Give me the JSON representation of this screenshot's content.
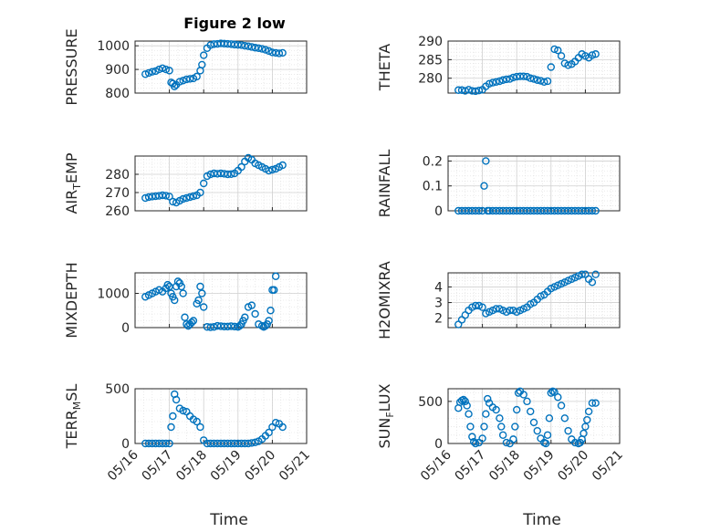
{
  "figure": {
    "title": "Figure 2 low",
    "xlabel": "Time",
    "x_ticks": [
      "05/16",
      "05/17",
      "05/18",
      "05/19",
      "05/20",
      "05/21"
    ],
    "marker_color": "#0072BD"
  },
  "chart_data": [
    {
      "type": "scatter",
      "id": "pressure",
      "ylabel": "PRESSURE",
      "ylim": [
        800,
        1020
      ],
      "yticks": [
        "800",
        "900",
        "1000"
      ],
      "ytick_values": [
        800,
        900,
        1000
      ],
      "xlim": [
        0,
        5
      ],
      "show_x_ticks": false,
      "x": [
        0.3,
        0.4,
        0.5,
        0.6,
        0.7,
        0.8,
        0.9,
        1.0,
        1.05,
        1.1,
        1.15,
        1.2,
        1.3,
        1.4,
        1.5,
        1.6,
        1.7,
        1.8,
        1.9,
        1.95,
        2.0,
        2.1,
        2.2,
        2.3,
        2.4,
        2.5,
        2.6,
        2.7,
        2.8,
        2.9,
        3.0,
        3.1,
        3.2,
        3.3,
        3.4,
        3.5,
        3.6,
        3.7,
        3.8,
        3.9,
        4.0,
        4.1,
        4.2,
        4.3
      ],
      "y": [
        880,
        885,
        890,
        893,
        900,
        905,
        900,
        895,
        845,
        840,
        828,
        835,
        848,
        853,
        858,
        860,
        862,
        870,
        895,
        920,
        960,
        990,
        1003,
        1007,
        1008,
        1010,
        1009,
        1008,
        1007,
        1005,
        1004,
        1003,
        1000,
        998,
        995,
        992,
        990,
        987,
        983,
        978,
        972,
        970,
        968,
        970
      ]
    },
    {
      "type": "scatter",
      "id": "theta",
      "ylabel": "THETA",
      "ylim": [
        276,
        290
      ],
      "yticks": [
        "280",
        "285",
        "290"
      ],
      "ytick_values": [
        280,
        285,
        290
      ],
      "xlim": [
        0,
        5
      ],
      "show_x_ticks": false,
      "x": [
        0.3,
        0.4,
        0.5,
        0.6,
        0.7,
        0.8,
        0.9,
        1.0,
        1.1,
        1.2,
        1.3,
        1.4,
        1.5,
        1.6,
        1.7,
        1.8,
        1.9,
        2.0,
        2.1,
        2.2,
        2.3,
        2.4,
        2.5,
        2.6,
        2.7,
        2.8,
        2.9,
        3.0,
        3.1,
        3.2,
        3.3,
        3.4,
        3.5,
        3.6,
        3.7,
        3.8,
        3.9,
        4.0,
        4.1,
        4.2,
        4.3
      ],
      "y": [
        276.8,
        276.8,
        276.6,
        276.9,
        276.6,
        276.5,
        276.7,
        276.9,
        277.8,
        278.5,
        278.8,
        279.0,
        279.2,
        279.5,
        279.7,
        279.8,
        280.2,
        280.4,
        280.5,
        280.5,
        280.4,
        280.0,
        279.8,
        279.5,
        279.3,
        279.0,
        279.2,
        283.0,
        287.8,
        287.5,
        286.0,
        284.0,
        283.5,
        283.8,
        284.5,
        285.5,
        286.5,
        286.0,
        285.5,
        286.2,
        286.5
      ]
    },
    {
      "type": "scatter",
      "id": "air_temp",
      "ylabel": "AIR_TEMP",
      "ylim": [
        260,
        290
      ],
      "yticks": [
        "260",
        "270",
        "280"
      ],
      "ytick_values": [
        260,
        270,
        280
      ],
      "xlim": [
        0,
        5
      ],
      "show_x_ticks": false,
      "x": [
        0.3,
        0.4,
        0.5,
        0.6,
        0.7,
        0.8,
        0.9,
        1.0,
        1.1,
        1.2,
        1.3,
        1.4,
        1.5,
        1.6,
        1.7,
        1.8,
        1.9,
        2.0,
        2.1,
        2.2,
        2.3,
        2.4,
        2.5,
        2.6,
        2.7,
        2.8,
        2.9,
        3.0,
        3.1,
        3.2,
        3.3,
        3.4,
        3.5,
        3.6,
        3.7,
        3.8,
        3.9,
        4.0,
        4.1,
        4.2,
        4.3
      ],
      "y": [
        267,
        267.5,
        267.8,
        268,
        268.2,
        268.5,
        268.3,
        267.8,
        265,
        264.5,
        265.5,
        266.5,
        267,
        267.5,
        268,
        268.5,
        270,
        275,
        279,
        280,
        280.5,
        280.3,
        280.5,
        280.3,
        280,
        280.1,
        280.5,
        282,
        284,
        287,
        289,
        288,
        286,
        285,
        284,
        283,
        282,
        282.5,
        283,
        284,
        285
      ]
    },
    {
      "type": "scatter",
      "id": "rainfall",
      "ylabel": "RAINFALL",
      "ylim": [
        0,
        0.22
      ],
      "yticks": [
        "0",
        "0.1",
        "0.2"
      ],
      "ytick_values": [
        0,
        0.1,
        0.2
      ],
      "xlim": [
        0,
        5
      ],
      "show_x_ticks": false,
      "x": [
        0.3,
        0.4,
        0.5,
        0.6,
        0.7,
        0.8,
        0.9,
        1.0,
        1.05,
        1.1,
        1.15,
        1.2,
        1.3,
        1.4,
        1.5,
        1.6,
        1.7,
        1.8,
        1.9,
        2.0,
        2.1,
        2.2,
        2.3,
        2.4,
        2.5,
        2.6,
        2.7,
        2.8,
        2.9,
        3.0,
        3.1,
        3.2,
        3.3,
        3.4,
        3.5,
        3.6,
        3.7,
        3.8,
        3.9,
        4.0,
        4.1,
        4.2,
        4.3
      ],
      "y": [
        0,
        0,
        0,
        0,
        0,
        0,
        0,
        0,
        0.1,
        0.2,
        0,
        0,
        0,
        0,
        0,
        0,
        0,
        0,
        0,
        0,
        0,
        0,
        0,
        0,
        0,
        0,
        0,
        0,
        0,
        0,
        0,
        0,
        0,
        0,
        0,
        0,
        0,
        0,
        0,
        0,
        0,
        0,
        0
      ]
    },
    {
      "type": "scatter",
      "id": "mixdepth",
      "ylabel": "MIXDEPTH",
      "ylim": [
        0,
        1600
      ],
      "yticks": [
        "0",
        "1000"
      ],
      "ytick_values": [
        0,
        1000
      ],
      "xlim": [
        0,
        5
      ],
      "show_x_ticks": false,
      "x": [
        0.3,
        0.4,
        0.5,
        0.6,
        0.7,
        0.8,
        0.9,
        0.95,
        1.0,
        1.05,
        1.1,
        1.15,
        1.2,
        1.25,
        1.3,
        1.35,
        1.4,
        1.45,
        1.5,
        1.55,
        1.6,
        1.65,
        1.7,
        1.8,
        1.85,
        1.9,
        1.95,
        2.0,
        2.1,
        2.2,
        2.3,
        2.4,
        2.5,
        2.6,
        2.7,
        2.8,
        2.9,
        3.0,
        3.05,
        3.1,
        3.15,
        3.2,
        3.3,
        3.4,
        3.5,
        3.6,
        3.7,
        3.75,
        3.8,
        3.85,
        3.9,
        3.95,
        4.0,
        4.05,
        4.1
      ],
      "y": [
        900,
        950,
        1000,
        1050,
        1100,
        1050,
        1150,
        1250,
        1200,
        1000,
        900,
        800,
        1200,
        1350,
        1300,
        1200,
        1000,
        300,
        100,
        50,
        100,
        150,
        200,
        700,
        800,
        1200,
        1000,
        600,
        20,
        10,
        20,
        50,
        40,
        30,
        30,
        40,
        30,
        20,
        50,
        100,
        200,
        300,
        600,
        650,
        400,
        100,
        50,
        20,
        50,
        100,
        200,
        500,
        1100,
        1100,
        1500
      ]
    },
    {
      "type": "scatter",
      "id": "h2omixra",
      "ylabel": "H2OMIXRA",
      "ylim": [
        1.4,
        4.9
      ],
      "yticks": [
        "2",
        "3",
        "4"
      ],
      "ytick_values": [
        2,
        3,
        4
      ],
      "xlim": [
        0,
        5
      ],
      "show_x_ticks": false,
      "x": [
        0.3,
        0.4,
        0.5,
        0.6,
        0.7,
        0.8,
        0.9,
        1.0,
        1.1,
        1.2,
        1.3,
        1.4,
        1.5,
        1.6,
        1.7,
        1.8,
        1.9,
        2.0,
        2.1,
        2.2,
        2.3,
        2.4,
        2.5,
        2.6,
        2.7,
        2.8,
        2.9,
        3.0,
        3.1,
        3.2,
        3.3,
        3.4,
        3.5,
        3.6,
        3.7,
        3.8,
        3.9,
        4.0,
        4.1,
        4.2,
        4.3
      ],
      "y": [
        1.6,
        1.9,
        2.2,
        2.5,
        2.7,
        2.8,
        2.8,
        2.7,
        2.3,
        2.4,
        2.5,
        2.6,
        2.6,
        2.5,
        2.4,
        2.5,
        2.5,
        2.4,
        2.5,
        2.6,
        2.7,
        2.9,
        3.0,
        3.2,
        3.4,
        3.5,
        3.7,
        3.9,
        4.0,
        4.1,
        4.2,
        4.3,
        4.4,
        4.5,
        4.6,
        4.7,
        4.8,
        4.8,
        4.5,
        4.3,
        4.8
      ]
    },
    {
      "type": "scatter",
      "id": "terr_msl",
      "ylabel": "TERR_MSL",
      "ylim": [
        0,
        500
      ],
      "yticks": [
        "0",
        "500"
      ],
      "ytick_values": [
        0,
        500
      ],
      "xlim": [
        0,
        5
      ],
      "show_x_ticks": true,
      "x": [
        0.3,
        0.4,
        0.5,
        0.6,
        0.7,
        0.8,
        0.9,
        1.0,
        1.05,
        1.1,
        1.15,
        1.2,
        1.3,
        1.4,
        1.5,
        1.6,
        1.7,
        1.8,
        1.9,
        2.0,
        2.1,
        2.2,
        2.3,
        2.4,
        2.5,
        2.6,
        2.7,
        2.8,
        2.9,
        3.0,
        3.1,
        3.2,
        3.3,
        3.4,
        3.5,
        3.6,
        3.7,
        3.8,
        3.9,
        4.0,
        4.1,
        4.2,
        4.3
      ],
      "y": [
        0,
        0,
        0,
        0,
        0,
        0,
        0,
        0,
        150,
        250,
        450,
        400,
        320,
        300,
        290,
        250,
        220,
        200,
        150,
        30,
        0,
        0,
        0,
        0,
        0,
        0,
        0,
        0,
        0,
        0,
        0,
        0,
        0,
        5,
        10,
        20,
        40,
        70,
        100,
        150,
        190,
        180,
        150
      ]
    },
    {
      "type": "scatter",
      "id": "sun_flux",
      "ylabel": "SUN_FLUX",
      "ylim": [
        0,
        650
      ],
      "yticks": [
        "0",
        "500"
      ],
      "ytick_values": [
        0,
        500
      ],
      "xlim": [
        0,
        5
      ],
      "show_x_ticks": true,
      "x": [
        0.3,
        0.35,
        0.4,
        0.45,
        0.5,
        0.55,
        0.6,
        0.65,
        0.7,
        0.75,
        0.8,
        0.9,
        1.0,
        1.05,
        1.1,
        1.15,
        1.2,
        1.3,
        1.4,
        1.5,
        1.55,
        1.6,
        1.7,
        1.8,
        1.9,
        1.95,
        2.0,
        2.05,
        2.1,
        2.2,
        2.3,
        2.4,
        2.5,
        2.6,
        2.7,
        2.8,
        2.85,
        2.9,
        2.95,
        3.0,
        3.05,
        3.1,
        3.2,
        3.3,
        3.4,
        3.5,
        3.6,
        3.7,
        3.8,
        3.85,
        3.9,
        3.95,
        4.0,
        4.05,
        4.1,
        4.2,
        4.3
      ],
      "y": [
        420,
        490,
        510,
        520,
        500,
        450,
        350,
        200,
        80,
        20,
        0,
        10,
        60,
        200,
        350,
        530,
        480,
        430,
        400,
        300,
        200,
        100,
        10,
        0,
        50,
        200,
        400,
        600,
        620,
        580,
        500,
        380,
        250,
        150,
        60,
        10,
        0,
        100,
        300,
        600,
        620,
        610,
        550,
        450,
        300,
        150,
        50,
        10,
        0,
        10,
        50,
        120,
        200,
        280,
        380,
        480,
        480
      ]
    }
  ]
}
